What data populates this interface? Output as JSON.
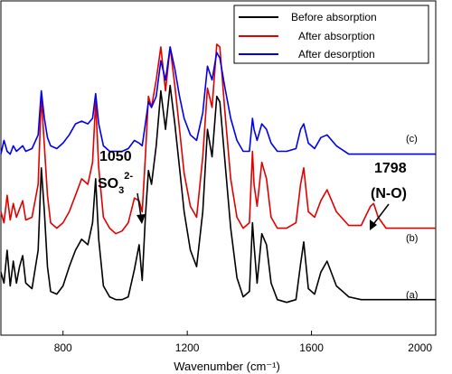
{
  "chart_data": {
    "type": "line",
    "title": "",
    "xlabel": "Wavenumber (cm⁻¹)",
    "ylabel": "",
    "xlim": [
      600,
      2000
    ],
    "ylim": [
      0,
      1
    ],
    "xticks": [
      800,
      1200,
      1600,
      2000
    ],
    "x": [
      600,
      610,
      620,
      630,
      640,
      650,
      660,
      670,
      680,
      700,
      720,
      730,
      740,
      750,
      760,
      780,
      800,
      820,
      840,
      860,
      880,
      895,
      905,
      915,
      930,
      950,
      970,
      990,
      1010,
      1030,
      1045,
      1055,
      1065,
      1075,
      1085,
      1100,
      1115,
      1130,
      1145,
      1160,
      1175,
      1190,
      1210,
      1230,
      1250,
      1265,
      1280,
      1295,
      1305,
      1320,
      1340,
      1360,
      1380,
      1400,
      1410,
      1415,
      1425,
      1440,
      1455,
      1470,
      1490,
      1520,
      1550,
      1565,
      1575,
      1590,
      1610,
      1630,
      1650,
      1680,
      1720,
      1760,
      1790,
      1800,
      1815,
      1840,
      1880,
      1920,
      1960,
      2000
    ],
    "series": [
      {
        "name": "Before absorption",
        "color": "#000000",
        "tag": "(a)",
        "values": [
          0.18,
          0.14,
          0.26,
          0.13,
          0.22,
          0.14,
          0.2,
          0.24,
          0.14,
          0.12,
          0.26,
          0.56,
          0.4,
          0.2,
          0.11,
          0.1,
          0.13,
          0.2,
          0.26,
          0.3,
          0.28,
          0.36,
          0.52,
          0.3,
          0.13,
          0.09,
          0.08,
          0.08,
          0.09,
          0.19,
          0.28,
          0.15,
          0.38,
          0.55,
          0.5,
          0.64,
          0.84,
          0.7,
          0.86,
          0.72,
          0.56,
          0.4,
          0.26,
          0.2,
          0.4,
          0.7,
          0.6,
          0.82,
          0.8,
          0.6,
          0.34,
          0.16,
          0.09,
          0.11,
          0.36,
          0.28,
          0.14,
          0.32,
          0.28,
          0.14,
          0.08,
          0.07,
          0.08,
          0.21,
          0.29,
          0.12,
          0.1,
          0.18,
          0.22,
          0.13,
          0.09,
          0.08,
          0.08,
          0.08,
          0.08,
          0.08,
          0.08,
          0.08,
          0.08,
          0.08
        ]
      },
      {
        "name": "After absorption",
        "color": "#e00000",
        "tag": "(b)",
        "values": [
          0.4,
          0.36,
          0.46,
          0.37,
          0.43,
          0.38,
          0.41,
          0.44,
          0.37,
          0.38,
          0.5,
          0.82,
          0.64,
          0.46,
          0.36,
          0.34,
          0.36,
          0.4,
          0.46,
          0.52,
          0.5,
          0.58,
          0.8,
          0.56,
          0.38,
          0.34,
          0.32,
          0.33,
          0.36,
          0.45,
          0.44,
          0.4,
          0.6,
          0.82,
          0.78,
          0.88,
          1.0,
          0.84,
          1.0,
          0.86,
          0.7,
          0.54,
          0.42,
          0.38,
          0.6,
          0.85,
          0.78,
          1.01,
          1.0,
          0.78,
          0.52,
          0.38,
          0.34,
          0.36,
          0.62,
          0.5,
          0.42,
          0.58,
          0.52,
          0.38,
          0.34,
          0.34,
          0.36,
          0.5,
          0.56,
          0.4,
          0.38,
          0.44,
          0.48,
          0.4,
          0.35,
          0.35,
          0.42,
          0.43,
          0.38,
          0.34,
          0.34,
          0.34,
          0.34,
          0.34
        ]
      },
      {
        "name": "After desorption",
        "color": "#0000ee",
        "tag": "(c)",
        "values": [
          0.61,
          0.66,
          0.62,
          0.61,
          0.64,
          0.62,
          0.63,
          0.64,
          0.62,
          0.63,
          0.68,
          0.84,
          0.74,
          0.67,
          0.64,
          0.63,
          0.65,
          0.68,
          0.72,
          0.73,
          0.72,
          0.74,
          0.83,
          0.72,
          0.64,
          0.62,
          0.62,
          0.62,
          0.63,
          0.66,
          0.65,
          0.64,
          0.72,
          0.8,
          0.78,
          0.82,
          0.95,
          0.88,
          1.0,
          0.92,
          0.82,
          0.74,
          0.68,
          0.66,
          0.76,
          0.93,
          0.88,
          0.98,
          0.96,
          0.86,
          0.74,
          0.66,
          0.62,
          0.62,
          0.74,
          0.7,
          0.66,
          0.72,
          0.7,
          0.65,
          0.62,
          0.62,
          0.63,
          0.7,
          0.72,
          0.65,
          0.63,
          0.67,
          0.68,
          0.64,
          0.61,
          0.61,
          0.61,
          0.61,
          0.61,
          0.61,
          0.61,
          0.61,
          0.61,
          0.61
        ]
      }
    ],
    "legend": {
      "placement": "top-right",
      "items": [
        "Before absorption",
        "After absorption",
        "After desorption"
      ]
    },
    "annotations": {
      "sulfite_wavenumber": "1050",
      "sulfite_formula": "SO",
      "sulfite_sub": "3",
      "sulfite_sup": "2-",
      "sulfite_arrow_at": 1065,
      "nitroso_wavenumber": "1798",
      "nitroso_group": "(N-O)",
      "nitroso_arrow_at": 1795
    },
    "grid": false
  }
}
